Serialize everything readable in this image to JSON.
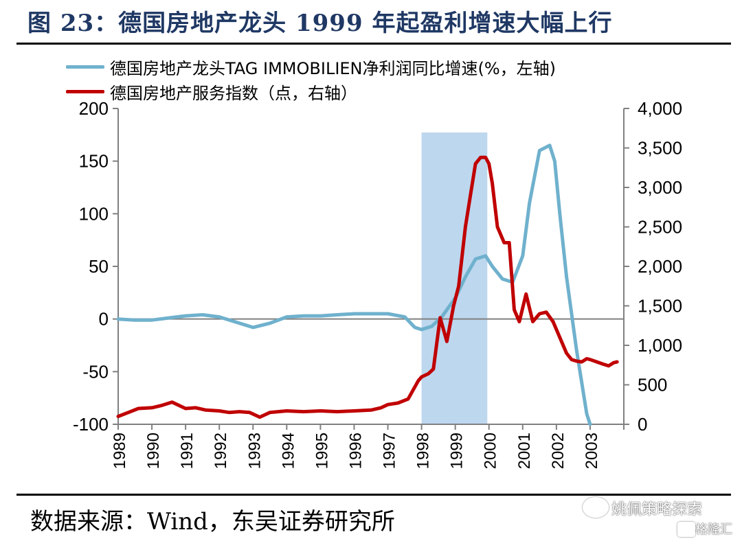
{
  "title": "图 23：德国房地产龙头 1999 年起盈利增速大幅上行",
  "source": "数据来源：Wind，东吴证券研究所",
  "watermark": {
    "account": "姚佩策略探索",
    "site": "格隆汇"
  },
  "colors": {
    "title": "#1f3864",
    "series_blue": "#6fb1cd",
    "series_red": "#c00000",
    "highlight": "#bdd7ee"
  },
  "chart_data": {
    "type": "line",
    "x_categories": [
      "1989",
      "1990",
      "1991",
      "1992",
      "1993",
      "1994",
      "1995",
      "1996",
      "1997",
      "1998",
      "1999",
      "2000",
      "2001",
      "2002",
      "2003"
    ],
    "left_axis": {
      "ylim": [
        -100,
        200
      ],
      "ticks": [
        "200",
        "150",
        "100",
        "50",
        "0",
        "-50",
        "-100"
      ],
      "tick_values": [
        200,
        150,
        100,
        50,
        0,
        -50,
        -100
      ]
    },
    "right_axis": {
      "ylim": [
        0,
        4000
      ],
      "ticks": [
        "4,000",
        "3,500",
        "3,000",
        "2,500",
        "2,000",
        "1,500",
        "1,000",
        "500",
        "0"
      ],
      "tick_values": [
        4000,
        3500,
        3000,
        2500,
        2000,
        1500,
        1000,
        500,
        0
      ]
    },
    "highlight": {
      "from": 1998.0,
      "to": 1999.95
    },
    "series": [
      {
        "name": "德国房地产龙头TAG IMMOBILIEN净利润同比增速(%，左轴)",
        "axis": "left",
        "color": "#6fb1cd",
        "x": [
          1989.0,
          1989.5,
          1990.0,
          1990.5,
          1991.0,
          1991.5,
          1992.0,
          1992.5,
          1993.0,
          1993.5,
          1994.0,
          1994.5,
          1995.0,
          1995.5,
          1996.0,
          1996.5,
          1997.0,
          1997.5,
          1997.8,
          1998.0,
          1998.3,
          1998.6,
          1999.0,
          1999.3,
          1999.6,
          1999.9,
          2000.1,
          2000.4,
          2000.7,
          2001.0,
          2001.2,
          2001.5,
          2001.8,
          2001.95,
          2002.1,
          2002.3,
          2002.6,
          2002.9,
          2003.0
        ],
        "y": [
          0,
          -1,
          -1,
          1,
          3,
          4,
          2,
          -3,
          -8,
          -4,
          2,
          3,
          3,
          4,
          5,
          5,
          5,
          2,
          -8,
          -10,
          -7,
          2,
          20,
          40,
          57,
          60,
          50,
          38,
          35,
          60,
          110,
          160,
          165,
          150,
          100,
          40,
          -30,
          -90,
          -100
        ]
      },
      {
        "name": "德国房地产服务指数（点，右轴）",
        "axis": "right",
        "color": "#c00000",
        "x": [
          1989.0,
          1989.3,
          1989.6,
          1990.0,
          1990.3,
          1990.6,
          1991.0,
          1991.3,
          1991.6,
          1992.0,
          1992.3,
          1992.6,
          1992.9,
          1993.2,
          1993.5,
          1994.0,
          1994.5,
          1995.0,
          1995.5,
          1996.0,
          1996.5,
          1996.8,
          1997.0,
          1997.3,
          1997.6,
          1997.9,
          1998.0,
          1998.2,
          1998.35,
          1998.55,
          1998.75,
          1998.95,
          1999.1,
          1999.3,
          1999.45,
          1999.6,
          1999.75,
          1999.9,
          2000.0,
          2000.1,
          2000.25,
          2000.45,
          2000.6,
          2000.75,
          2000.9,
          2001.1,
          2001.3,
          2001.5,
          2001.7,
          2001.9,
          2002.1,
          2002.3,
          2002.45,
          2002.6,
          2002.75,
          2002.9,
          2003.0,
          2003.2,
          2003.4,
          2003.55,
          2003.7,
          2003.8
        ],
        "y": [
          100,
          150,
          200,
          210,
          240,
          280,
          200,
          210,
          180,
          170,
          150,
          160,
          150,
          90,
          150,
          170,
          160,
          170,
          160,
          170,
          180,
          210,
          250,
          270,
          320,
          550,
          600,
          640,
          700,
          1350,
          1050,
          1500,
          1750,
          2500,
          2900,
          3300,
          3380,
          3380,
          3300,
          3050,
          2500,
          2300,
          2300,
          1450,
          1300,
          1650,
          1300,
          1400,
          1420,
          1300,
          1100,
          900,
          820,
          800,
          790,
          830,
          820,
          790,
          760,
          740,
          780,
          790
        ]
      }
    ]
  }
}
